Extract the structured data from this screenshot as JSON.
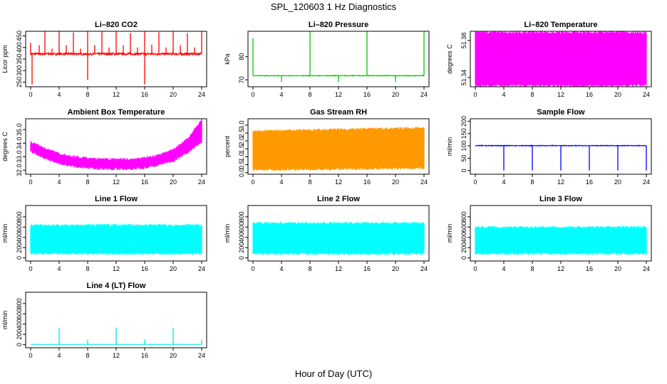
{
  "title": "SPL_120603  1 Hz Diagnostics",
  "x_title": "Hour of Day (UTC)",
  "chart_data": [
    {
      "type": "line",
      "title": "Li–820 CO2",
      "ylabel": "Licor ppm",
      "color": "#ff0000",
      "xlim": [
        0,
        24
      ],
      "ylim": [
        230,
        470
      ],
      "x_ticks": [
        0,
        4,
        8,
        12,
        16,
        20,
        24
      ],
      "y_ticks": [
        250,
        300,
        350,
        400,
        450
      ],
      "series": [
        {
          "baseline": 372,
          "noise": 5,
          "spikes": [
            [
              1.2,
              410
            ],
            [
              2,
              470
            ],
            [
              3,
              395
            ],
            [
              4,
              472
            ],
            [
              5,
              410
            ],
            [
              6,
              465
            ],
            [
              7,
              395
            ],
            [
              8,
              470
            ],
            [
              8,
              260
            ],
            [
              9,
              410
            ],
            [
              10,
              468
            ],
            [
              11,
              400
            ],
            [
              12,
              470
            ],
            [
              13,
              410
            ],
            [
              14,
              462
            ],
            [
              15,
              400
            ],
            [
              16,
              470
            ],
            [
              16,
              240
            ],
            [
              17,
              412
            ],
            [
              18,
              466
            ],
            [
              19,
              400
            ],
            [
              20,
              470
            ],
            [
              21,
              410
            ],
            [
              22,
              462
            ],
            [
              23,
              400
            ],
            [
              24,
              470
            ],
            [
              0,
              420
            ],
            [
              0.2,
              240
            ]
          ]
        }
      ]
    },
    {
      "type": "line",
      "title": "Li–820 Pressure",
      "ylabel": "kPa",
      "color": "#00cc00",
      "xlim": [
        0,
        24
      ],
      "ylim": [
        67,
        91
      ],
      "x_ticks": [
        0,
        4,
        8,
        12,
        16,
        20,
        24
      ],
      "y_ticks": [
        70,
        80
      ],
      "series": [
        {
          "baseline": 71.8,
          "noise": 0.15,
          "spikes": [
            [
              0,
              88
            ],
            [
              0.2,
              72
            ],
            [
              4,
              69
            ],
            [
              8,
              91
            ],
            [
              12,
              69
            ],
            [
              16,
              91
            ],
            [
              20,
              69
            ],
            [
              24,
              91
            ]
          ]
        }
      ]
    },
    {
      "type": "band",
      "title": "Li–820 Temperature",
      "ylabel": "degrees C",
      "color": "#ff00ff",
      "xlim": [
        0,
        24
      ],
      "ylim": [
        51.33,
        51.39
      ],
      "x_ticks": [
        0,
        4,
        8,
        12,
        16,
        20,
        24
      ],
      "y_ticks": [
        51.34,
        51.38
      ],
      "series": [
        {
          "upper": 51.39,
          "lower": 51.33
        }
      ]
    },
    {
      "type": "band",
      "title": "Ambient Box Temperature",
      "ylabel": "degrees C",
      "color": "#ff00ff",
      "xlim": [
        0,
        24
      ],
      "ylim": [
        31.7,
        35.8
      ],
      "x_ticks": [
        0,
        4,
        8,
        12,
        16,
        20,
        24
      ],
      "y_ticks": [
        32.0,
        33.0,
        34.0,
        35.0
      ],
      "y_tick_labels": [
        "32.0",
        "33.0",
        "34.0",
        "35.0"
      ],
      "series": [
        {
          "x": [
            0,
            2,
            4,
            6,
            8,
            10,
            12,
            14,
            16,
            18,
            20,
            22,
            24
          ],
          "upper": [
            34.2,
            33.7,
            33.3,
            33.1,
            33.0,
            32.9,
            32.9,
            32.9,
            33.0,
            33.2,
            33.6,
            34.4,
            35.8
          ],
          "lower": [
            33.3,
            32.8,
            32.4,
            32.2,
            32.1,
            32.0,
            32.0,
            32.0,
            32.1,
            32.3,
            32.6,
            33.2,
            34.0
          ]
        }
      ]
    },
    {
      "type": "band",
      "title": "Gas Stream RH",
      "ylabel": "percent",
      "color": "#ff9900",
      "xlim": [
        0,
        24
      ],
      "ylim": [
        -0.1,
        3.4
      ],
      "x_ticks": [
        0,
        4,
        8,
        12,
        16,
        20,
        24
      ],
      "y_ticks": [
        0.0,
        0.5,
        1.0,
        1.5,
        2.0,
        2.5,
        3.0
      ],
      "y_tick_labels": [
        "0.0",
        "0.5",
        "1.0",
        "1.5",
        "2.0",
        "2.5",
        "3.0"
      ],
      "series": [
        {
          "x": [
            0,
            24
          ],
          "upper": [
            2.7,
            2.9
          ],
          "lower": [
            0.1,
            0.2
          ]
        }
      ]
    },
    {
      "type": "line",
      "title": "Sample Flow",
      "ylabel": "ml/min",
      "color": "#0000ff",
      "xlim": [
        0,
        24
      ],
      "ylim": [
        -15,
        210
      ],
      "x_ticks": [
        0,
        4,
        8,
        12,
        16,
        20,
        24
      ],
      "y_ticks": [
        0,
        50,
        100,
        150,
        200
      ],
      "series": [
        {
          "baseline": 101,
          "noise": 1.5,
          "spikes": [
            [
              4,
              0
            ],
            [
              8,
              0
            ],
            [
              12,
              0
            ],
            [
              16,
              0
            ],
            [
              20,
              0
            ],
            [
              24,
              0
            ]
          ]
        }
      ]
    },
    {
      "type": "band",
      "title": "Line 1 Flow",
      "ylabel": "ml/min",
      "color": "#00ffff",
      "xlim": [
        0,
        24
      ],
      "ylim": [
        -60,
        1020
      ],
      "x_ticks": [
        0,
        4,
        8,
        12,
        16,
        20,
        24
      ],
      "y_ticks": [
        0,
        200,
        400,
        600,
        800
      ],
      "series": [
        {
          "x": [
            0,
            24
          ],
          "upper": [
            660,
            660
          ],
          "lower": [
            60,
            60
          ]
        }
      ]
    },
    {
      "type": "band",
      "title": "Line 2 Flow",
      "ylabel": "ml/min",
      "color": "#00ffff",
      "xlim": [
        0,
        24
      ],
      "ylim": [
        -60,
        1020
      ],
      "x_ticks": [
        0,
        4,
        8,
        12,
        16,
        20,
        24
      ],
      "y_ticks": [
        0,
        200,
        400,
        600,
        800
      ],
      "series": [
        {
          "x": [
            0,
            24
          ],
          "upper": [
            700,
            700
          ],
          "lower": [
            60,
            60
          ]
        }
      ]
    },
    {
      "type": "band",
      "title": "Line 3 Flow",
      "ylabel": "ml/min",
      "color": "#00ffff",
      "xlim": [
        0,
        24
      ],
      "ylim": [
        -60,
        1020
      ],
      "x_ticks": [
        0,
        4,
        8,
        12,
        16,
        20,
        24
      ],
      "y_ticks": [
        0,
        200,
        400,
        600,
        800
      ],
      "series": [
        {
          "x": [
            0,
            24
          ],
          "upper": [
            620,
            620
          ],
          "lower": [
            60,
            60
          ]
        }
      ]
    },
    {
      "type": "line",
      "title": "Line 4 (LT) Flow",
      "ylabel": "ml/min",
      "color": "#00e5ee",
      "xlim": [
        0,
        24
      ],
      "ylim": [
        -60,
        1020
      ],
      "x_ticks": [
        0,
        4,
        8,
        12,
        16,
        20,
        24
      ],
      "y_ticks": [
        0,
        200,
        400,
        600,
        800
      ],
      "series": [
        {
          "baseline": 5,
          "noise": 2,
          "spikes": [
            [
              4,
              330
            ],
            [
              8,
              100
            ],
            [
              12,
              330
            ],
            [
              16,
              100
            ],
            [
              20,
              330
            ],
            [
              24,
              100
            ]
          ]
        }
      ]
    }
  ]
}
